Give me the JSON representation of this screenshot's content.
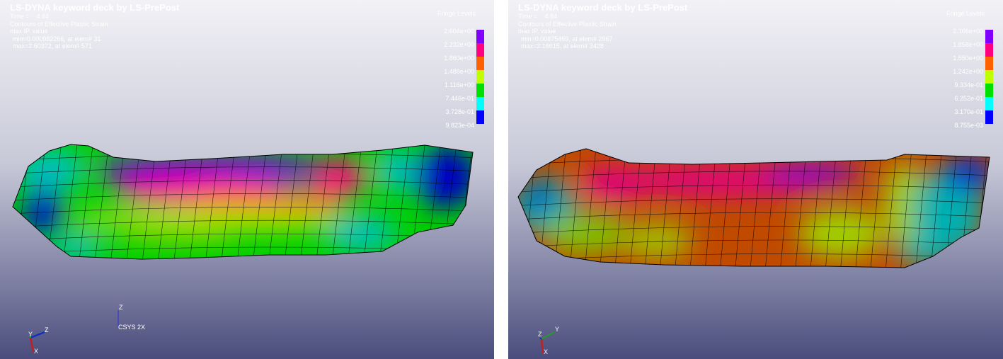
{
  "panels": [
    {
      "title": "LS-DYNA keyword deck by LS-PrePost",
      "time_label": "Time =",
      "time": "4.84",
      "contour": "Contours of Effective Plastic Strain",
      "mode": "max IP. value",
      "min": "min=0.000982266, at elem# 31",
      "max": "max=2.60372, at elem# 571",
      "legend_title": "Fringe Levels",
      "levels": [
        "2.604e+00",
        "2.232e+00",
        "1.860e+00",
        "1.488e+00",
        "1.116e+00",
        "7.446e-01",
        "3.728e-01",
        "9.823e-04"
      ],
      "triad": {
        "x": "X",
        "y": "Y",
        "z": "Z"
      },
      "csys": {
        "z": "Z",
        "label": "CSYS 2X"
      }
    },
    {
      "title": "LS-DYNA keyword deck by LS-PrePost",
      "time_label": "Time =",
      "time": "4.84",
      "contour": "Contours of Effective Plastic Strain",
      "mode": "max IP. value",
      "min": "min=0.00875469, at elem# 2967",
      "max": "max=2.16615, at elem# 3428",
      "legend_title": "Fringe Levels",
      "levels": [
        "2.166e+00",
        "1.858e+00",
        "1.550e+00",
        "1.242e+00",
        "9.334e-01",
        "6.252e-01",
        "3.170e-01",
        "8.755e-03"
      ],
      "triad": {
        "x": "X",
        "y": "Y",
        "z": "Z"
      }
    }
  ],
  "fringe_colors": [
    "#8000ff",
    "#ff0080",
    "#ff6000",
    "#c0ff00",
    "#00e000",
    "#00ffff",
    "#0000ff"
  ]
}
